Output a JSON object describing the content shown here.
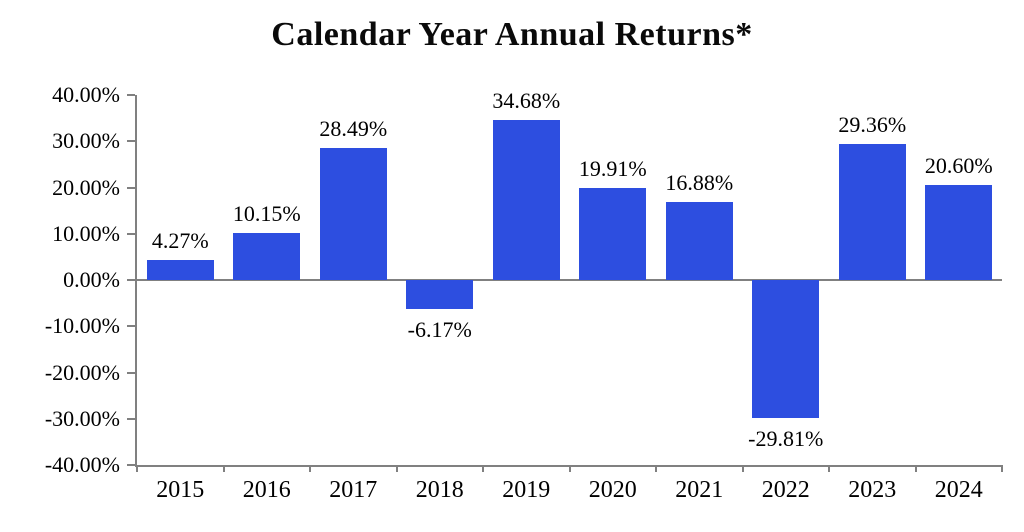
{
  "page": {
    "background": "#ffffff"
  },
  "chart_data": {
    "type": "bar",
    "title": "Calendar Year Annual Returns*",
    "categories": [
      "2015",
      "2016",
      "2017",
      "2018",
      "2019",
      "2020",
      "2021",
      "2022",
      "2023",
      "2024"
    ],
    "values": [
      4.27,
      10.15,
      28.49,
      -6.17,
      34.68,
      19.91,
      16.88,
      -29.81,
      29.36,
      20.6
    ],
    "value_labels": [
      "4.27%",
      "10.15%",
      "28.49%",
      "-6.17%",
      "34.68%",
      "19.91%",
      "16.88%",
      "-29.81%",
      "29.36%",
      "20.60%"
    ],
    "xlabel": "",
    "ylabel": "",
    "ylim": [
      -40,
      40
    ],
    "y_ticks": [
      40,
      30,
      20,
      10,
      0,
      -10,
      -20,
      -30,
      -40
    ],
    "y_tick_labels": [
      "40.00%",
      "30.00%",
      "20.00%",
      "10.00%",
      "0.00%",
      "-10.00%",
      "-20.00%",
      "-30.00%",
      "-40.00%"
    ],
    "grid": false,
    "legend": "none",
    "bar_color": "#2d4ee0",
    "axis_color": "#808080",
    "text_color": "#000000"
  }
}
